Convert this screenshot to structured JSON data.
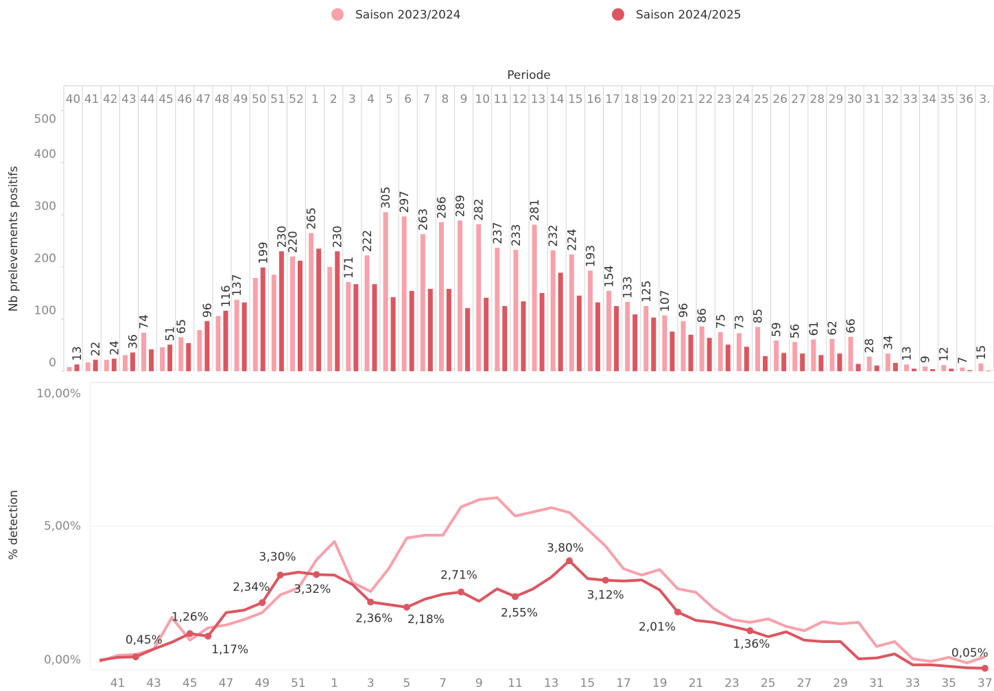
{
  "chart_data": [
    {
      "type": "bar",
      "title": "Periode",
      "ylabel": "Nb prelevements positifs",
      "categories": [
        "40",
        "41",
        "42",
        "43",
        "44",
        "45",
        "46",
        "47",
        "48",
        "49",
        "50",
        "51",
        "52",
        "1",
        "2",
        "3",
        "4",
        "5",
        "6",
        "7",
        "8",
        "9",
        "10",
        "11",
        "12",
        "13",
        "14",
        "15",
        "16",
        "17",
        "18",
        "19",
        "20",
        "21",
        "22",
        "23",
        "24",
        "25",
        "26",
        "27",
        "28",
        "29",
        "30",
        "31",
        "32",
        "33",
        "34",
        "35",
        "36",
        "3."
      ],
      "series": [
        {
          "name": "Saison 2023/2024",
          "color": "#f8a1aa",
          "values": [
            8,
            17,
            22,
            31,
            74,
            46,
            65,
            79,
            106,
            137,
            179,
            185,
            220,
            265,
            200,
            171,
            222,
            305,
            297,
            263,
            286,
            289,
            282,
            237,
            233,
            281,
            232,
            224,
            193,
            154,
            133,
            125,
            107,
            96,
            86,
            75,
            73,
            85,
            59,
            56,
            61,
            62,
            66,
            28,
            34,
            13,
            9,
            12,
            7,
            15
          ]
        },
        {
          "name": "Saison 2024/2025",
          "color": "#dc5660",
          "values": [
            13,
            22,
            24,
            36,
            42,
            51,
            54,
            96,
            116,
            132,
            199,
            230,
            212,
            235,
            230,
            167,
            167,
            142,
            154,
            158,
            158,
            121,
            141,
            125,
            134,
            150,
            189,
            145,
            132,
            125,
            109,
            103,
            76,
            70,
            64,
            51,
            47,
            29,
            35,
            34,
            31,
            34,
            14,
            11,
            16,
            5,
            4,
            5,
            2,
            1
          ]
        }
      ],
      "ylim": [
        0,
        512
      ],
      "yticks": [
        0,
        100,
        200,
        300,
        400,
        500
      ]
    },
    {
      "type": "line",
      "ylabel": "% detection",
      "categories": [
        null,
        "41",
        null,
        "43",
        null,
        "45",
        null,
        "47",
        null,
        "49",
        null,
        "51",
        null,
        "1",
        null,
        "3",
        null,
        "5",
        null,
        "7",
        null,
        "9",
        null,
        "11",
        null,
        "13",
        null,
        "15",
        null,
        "17",
        null,
        "19",
        null,
        "21",
        null,
        "23",
        null,
        "25",
        null,
        "27",
        null,
        "29",
        null,
        "31",
        null,
        "33",
        null,
        "35",
        null,
        "37"
      ],
      "series": [
        {
          "color": "#f8a1aa",
          "values": [
            0.29,
            0.5,
            0.53,
            0.72,
            1.82,
            1.03,
            1.46,
            1.56,
            1.75,
            1.99,
            2.61,
            2.85,
            3.83,
            4.47,
            3.04,
            2.73,
            3.52,
            4.59,
            4.69,
            4.69,
            5.67,
            5.93,
            6.0,
            5.36,
            5.5,
            5.65,
            5.48,
            4.9,
            4.31,
            3.52,
            3.3,
            3.49,
            2.82,
            2.7,
            2.13,
            1.75,
            1.65,
            1.77,
            1.51,
            1.36,
            1.67,
            1.6,
            1.65,
            0.81,
            0.98,
            0.38,
            0.29,
            0.43,
            0.24,
            0.45
          ]
        },
        {
          "color": "#dc5660",
          "values": [
            0.33,
            0.43,
            0.45,
            0.72,
            0.96,
            1.26,
            1.17,
            1.99,
            2.08,
            2.34,
            3.3,
            3.4,
            3.32,
            3.3,
            2.97,
            2.36,
            2.27,
            2.18,
            2.46,
            2.63,
            2.71,
            2.39,
            2.82,
            2.55,
            2.82,
            3.23,
            3.8,
            3.18,
            3.12,
            3.09,
            3.13,
            2.78,
            2.01,
            1.72,
            1.65,
            1.51,
            1.36,
            1.15,
            1.32,
            1.03,
            0.98,
            0.98,
            0.38,
            0.41,
            0.55,
            0.17,
            0.17,
            0.12,
            0.07,
            0.05
          ],
          "value_labels": [
            null,
            null,
            "0,45%",
            null,
            null,
            "1,26%",
            "1,17%",
            null,
            null,
            "2,34%",
            "3,30%",
            null,
            "3,32%",
            null,
            null,
            "2,36%",
            null,
            "2,18%",
            null,
            null,
            "2,71%",
            null,
            null,
            "2,55%",
            null,
            null,
            "3,80%",
            null,
            "3,12%",
            null,
            null,
            null,
            "2,01%",
            null,
            null,
            null,
            "1,36%",
            null,
            null,
            null,
            null,
            null,
            null,
            null,
            null,
            null,
            null,
            null,
            null,
            "0,05%"
          ]
        }
      ],
      "ylim": [
        0,
        10
      ],
      "yticks": [
        {
          "value": 0,
          "label": "0,00%"
        },
        {
          "value": 5,
          "label": "5,00%"
        },
        {
          "value": 10,
          "label": "10,00%"
        }
      ],
      "grid": true
    }
  ]
}
